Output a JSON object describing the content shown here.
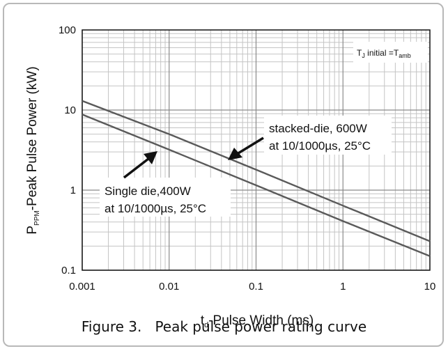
{
  "chart_data": {
    "type": "line",
    "x_scale": "log",
    "y_scale": "log",
    "xlim": [
      0.001,
      10
    ],
    "ylim": [
      0.1,
      100
    ],
    "x_ticks": [
      "0.001",
      "0.01",
      "0.1",
      "1",
      "10"
    ],
    "y_ticks": [
      "0.1",
      "1",
      "10",
      "100"
    ],
    "x_tick_values": [
      0.001,
      0.01,
      0.1,
      1,
      10
    ],
    "y_tick_values": [
      0.1,
      1,
      10,
      100
    ],
    "xlabel": {
      "pre": "t",
      "sub": "d",
      "post": "-Pulse Width (ms)"
    },
    "ylabel": {
      "pre": "P",
      "sub": "PPM",
      "post": "-Peak Pulse Power (kW)"
    },
    "grid": true,
    "series": [
      {
        "name": "stacked-die, 600W at 10/1000µs, 25°C",
        "x": [
          0.001,
          0.01,
          0.1,
          1,
          10
        ],
        "y": [
          13,
          5.0,
          1.8,
          0.64,
          0.23
        ]
      },
      {
        "name": "Single die,400W at 10/1000µs, 25°C",
        "x": [
          0.001,
          0.01,
          0.1,
          1,
          10
        ],
        "y": [
          8.8,
          3.2,
          1.15,
          0.41,
          0.15
        ]
      }
    ],
    "annotations": {
      "stacked": {
        "line1": "stacked-die, 600W",
        "line2": "at 10/1000µs, 25°C"
      },
      "single": {
        "line1": "Single die,400W",
        "line2": "at 10/1000µs, 25°C"
      },
      "tj": {
        "a": "T",
        "b": "J",
        "c": " initial =T",
        "d": "amb"
      }
    }
  },
  "caption": "Figure 3.   Peak pulse power rating curve"
}
